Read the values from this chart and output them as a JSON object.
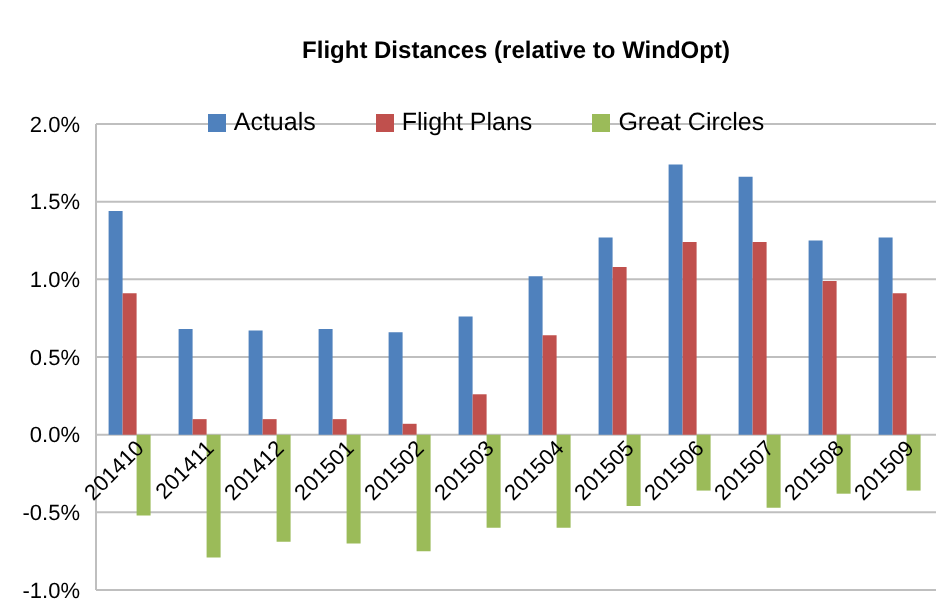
{
  "chart_data": {
    "type": "bar",
    "title": "Flight Distances (relative to WindOpt)",
    "categories": [
      "201410",
      "201411",
      "201412",
      "201501",
      "201502",
      "201503",
      "201504",
      "201505",
      "201506",
      "201507",
      "201508",
      "201509"
    ],
    "series": [
      {
        "name": "Actuals",
        "color": "#4f81bd",
        "values": [
          1.44,
          0.68,
          0.67,
          0.68,
          0.66,
          0.76,
          1.02,
          1.27,
          1.74,
          1.66,
          1.25,
          1.27
        ]
      },
      {
        "name": "Flight Plans",
        "color": "#c0504d",
        "values": [
          0.91,
          0.1,
          0.1,
          0.1,
          0.07,
          0.26,
          0.64,
          1.08,
          1.24,
          1.24,
          0.99,
          0.91
        ]
      },
      {
        "name": "Great Circles",
        "color": "#9bbb59",
        "values": [
          -0.52,
          -0.79,
          -0.69,
          -0.7,
          -0.75,
          -0.6,
          -0.6,
          -0.46,
          -0.36,
          -0.47,
          -0.38,
          -0.36
        ]
      }
    ],
    "ylim": [
      -1,
      2
    ],
    "yticks": [
      {
        "value": -1,
        "label": "-1.0%"
      },
      {
        "value": -0.5,
        "label": "-0.5%"
      },
      {
        "value": 0,
        "label": "0.0%"
      },
      {
        "value": 0.5,
        "label": "0.5%"
      },
      {
        "value": 1,
        "label": "1.0%"
      },
      {
        "value": 1.5,
        "label": "1.5%"
      },
      {
        "value": 2,
        "label": "2.0%"
      }
    ],
    "grid": "y",
    "legend": "top"
  }
}
